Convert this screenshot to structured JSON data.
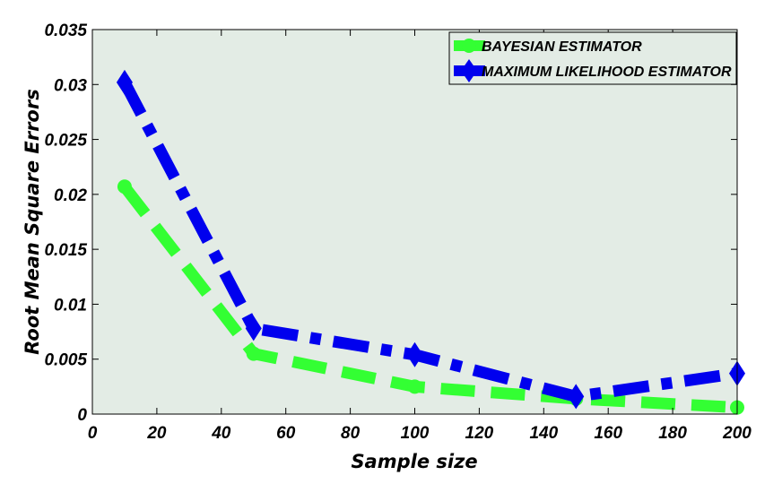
{
  "chart_data": {
    "type": "line",
    "title": "",
    "xlabel": "Sample size",
    "ylabel": "Root Mean Square Errors",
    "xlim": [
      0,
      200
    ],
    "ylim": [
      0,
      0.035
    ],
    "xticks": [
      0,
      20,
      40,
      60,
      80,
      100,
      120,
      140,
      160,
      180,
      200
    ],
    "yticks": [
      0,
      0.005,
      0.01,
      0.015,
      0.02,
      0.025,
      0.03,
      0.035
    ],
    "xtick_labels": [
      "0",
      "20",
      "40",
      "60",
      "80",
      "100",
      "120",
      "140",
      "160",
      "180",
      "200"
    ],
    "ytick_labels": [
      "0",
      "0.005",
      "0.01",
      "0.015",
      "0.02",
      "0.025",
      "0.03",
      "0.035"
    ],
    "grid": false,
    "background_color": "#e3ece5",
    "legend_position": "top-right",
    "x": [
      10,
      50,
      100,
      150,
      200
    ],
    "series": [
      {
        "name": "BAYESIAN ESTIMATOR",
        "values": [
          0.0207,
          0.0055,
          0.0025,
          0.0014,
          0.0006
        ],
        "color": "#33ff33",
        "marker": "circle",
        "line_style": "dashed"
      },
      {
        "name": "MAXIMUM LIKELIHOOD ESTIMATOR",
        "values": [
          0.0302,
          0.0078,
          0.0054,
          0.0016,
          0.0037
        ],
        "color": "#0000ee",
        "marker": "diamond",
        "line_style": "dash-dot"
      }
    ]
  }
}
